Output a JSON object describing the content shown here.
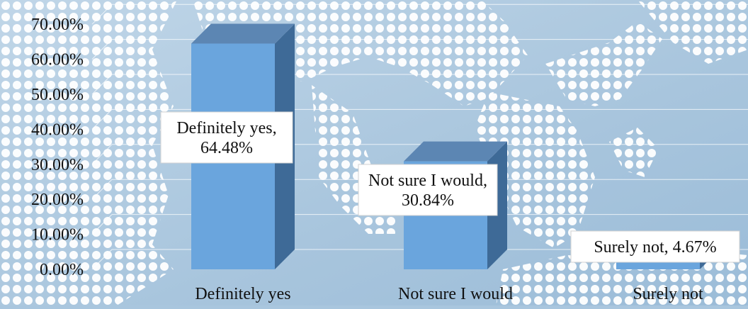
{
  "chart_data": {
    "type": "bar",
    "style": "3d-column",
    "categories": [
      "Definitely yes",
      "Not sure I would",
      "Surely not"
    ],
    "values": [
      64.48,
      30.84,
      4.67
    ],
    "data_labels": [
      "Definitely yes, 64.48%",
      "Not sure I would, 30.84%",
      "Surely not, 4.67%"
    ],
    "yticks": [
      "0.00%",
      "10.00%",
      "20.00%",
      "30.00%",
      "40.00%",
      "50.00%",
      "60.00%",
      "70.00%"
    ],
    "ylim": [
      0,
      70
    ],
    "grid": true,
    "legend": "none",
    "title": "",
    "xlabel": "",
    "ylabel": ""
  },
  "colors": {
    "background": "#a9c6de",
    "map_dots": "#ffffff",
    "bar_front": "#6aa5dd",
    "bar_top": "#5c86b3",
    "bar_side": "#3e6a97",
    "label_box": "#ffffff",
    "text": "#111111"
  }
}
